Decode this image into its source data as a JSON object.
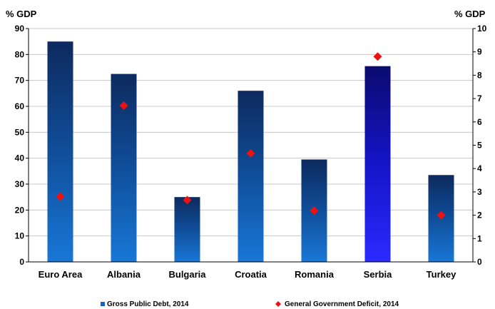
{
  "chart_data": {
    "type": "bar",
    "categories": [
      "Euro Area",
      "Albania",
      "Bulgaria",
      "Croatia",
      "Romania",
      "Serbia",
      "Turkey"
    ],
    "series": [
      {
        "name": "Gross Public Debt, 2014",
        "kind": "bar",
        "axis": "left",
        "values": [
          85,
          72.5,
          25,
          66,
          39.5,
          75.5,
          33.5
        ],
        "color": "#1565c8",
        "highlight_category": "Serbia",
        "highlight_color": "#1a1aff"
      },
      {
        "name": "General Government Deficit, 2014",
        "kind": "marker",
        "axis": "right",
        "values": [
          2.8,
          6.7,
          2.65,
          4.65,
          2.2,
          8.8,
          2.0
        ],
        "color": "#ee1111"
      }
    ],
    "ylabel_left": "% GDP",
    "ylabel_right": "% GDP",
    "ylim_left": [
      0,
      90
    ],
    "yticks_left": [
      0,
      10,
      20,
      30,
      40,
      50,
      60,
      70,
      80,
      90
    ],
    "ylim_right": [
      0,
      10
    ],
    "yticks_right": [
      0,
      1,
      2,
      3,
      4,
      5,
      6,
      7,
      8,
      9,
      10
    ],
    "grid": "horizontal",
    "legend_position": "bottom"
  }
}
